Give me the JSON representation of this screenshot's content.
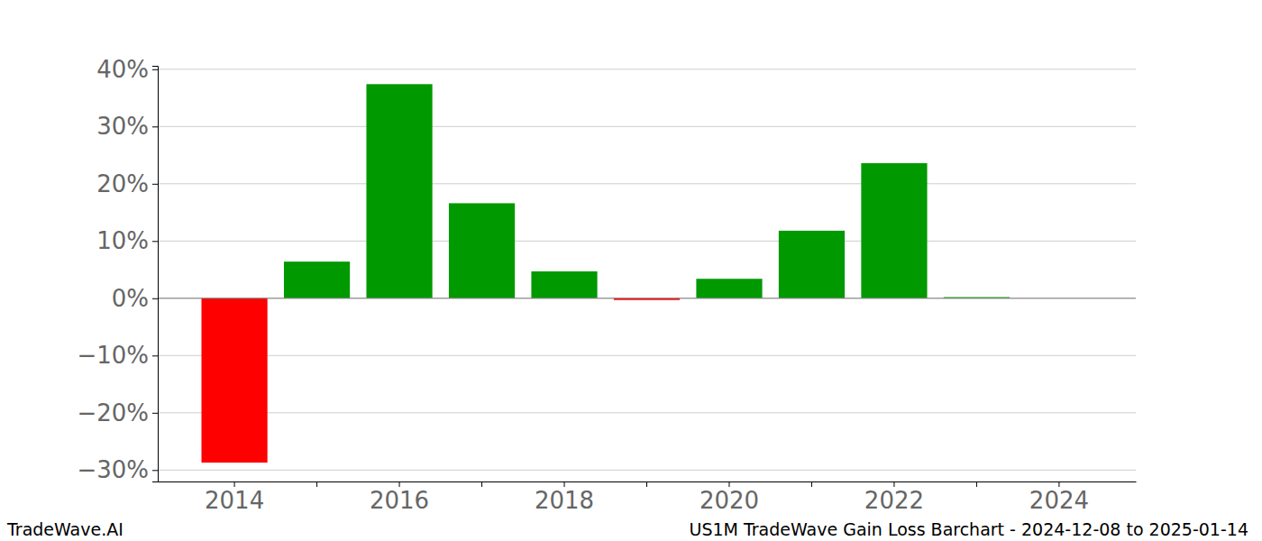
{
  "chart_data": {
    "type": "bar",
    "title": "US1M TradeWave Gain Loss Barchart - 2024-12-08 to 2025-01-14",
    "annotations": [
      "TradeWave.AI"
    ],
    "categories": [
      "2014",
      null,
      "2016",
      null,
      "2018",
      null,
      "2020",
      null,
      "2022",
      null,
      "2024"
    ],
    "values": [
      -28.7,
      6.4,
      37.4,
      16.6,
      4.7,
      -0.3,
      3.4,
      11.8,
      23.6,
      0.2,
      0
    ],
    "colors": [
      "#ff0000",
      "#009900",
      "#009900",
      "#009900",
      "#009900",
      "#ff0000",
      "#009900",
      "#009900",
      "#009900",
      "#009900",
      "#009900"
    ],
    "ylim": [
      -32,
      40.6
    ],
    "yticks": [
      {
        "value": -30,
        "label": "−30%"
      },
      {
        "value": -20,
        "label": "−20%"
      },
      {
        "value": -10,
        "label": "−10%"
      },
      {
        "value": 0,
        "label": "0%"
      },
      {
        "value": 10,
        "label": "10%"
      },
      {
        "value": 20,
        "label": "20%"
      },
      {
        "value": 30,
        "label": "30%"
      },
      {
        "value": 40,
        "label": "40%"
      }
    ],
    "grid": true
  }
}
